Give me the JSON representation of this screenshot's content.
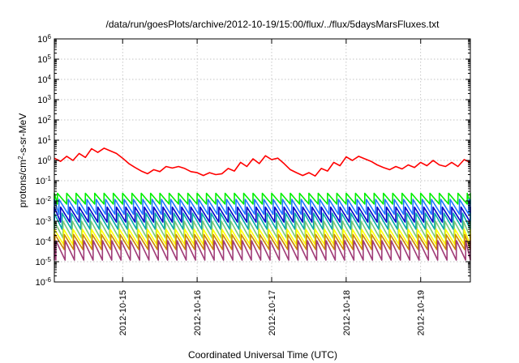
{
  "chart_data": {
    "type": "line",
    "title": "/data/run/goesPlots/archive/2012-10-19/15:00/flux/../flux/5daysMarsFluxes.txt",
    "xlabel": "Coordinated Universal Time (UTC)",
    "ylabel": "protons/cm2-s-sr-MeV",
    "ylabel_parts": {
      "before": "protons/cm",
      "sup": "2",
      "after": "-s-sr-MeV"
    },
    "xlim": [
      "2012-10-14T02:00",
      "2012-10-19T16:00"
    ],
    "yscale": "log",
    "ylim": [
      1e-06,
      1000000.0
    ],
    "grid": true,
    "x_ticks": [
      "2012-10-15",
      "2012-10-16",
      "2012-10-17",
      "2012-10-18",
      "2012-10-19"
    ],
    "y_ticks": [
      {
        "base": "10",
        "exp": "-6"
      },
      {
        "base": "10",
        "exp": "-5"
      },
      {
        "base": "10",
        "exp": "-4"
      },
      {
        "base": "10",
        "exp": "-3"
      },
      {
        "base": "10",
        "exp": "-2"
      },
      {
        "base": "10",
        "exp": "-1"
      },
      {
        "base": "10",
        "exp": "0"
      },
      {
        "base": "10",
        "exp": "1"
      },
      {
        "base": "10",
        "exp": "2"
      },
      {
        "base": "10",
        "exp": "3"
      },
      {
        "base": "10",
        "exp": "4"
      },
      {
        "base": "10",
        "exp": "5"
      },
      {
        "base": "10",
        "exp": "6"
      }
    ],
    "series": [
      {
        "color": "#ff0000",
        "x": [
          "2012-10-14T02:00",
          "2012-10-14T04:00",
          "2012-10-14T06:00",
          "2012-10-14T08:00",
          "2012-10-14T10:00",
          "2012-10-14T12:00",
          "2012-10-14T14:00",
          "2012-10-14T16:00",
          "2012-10-14T18:00",
          "2012-10-14T20:00",
          "2012-10-14T22:00",
          "2012-10-15T00:00",
          "2012-10-15T02:00",
          "2012-10-15T04:00",
          "2012-10-15T06:00",
          "2012-10-15T08:00",
          "2012-10-15T10:00",
          "2012-10-15T12:00",
          "2012-10-15T14:00",
          "2012-10-15T16:00",
          "2012-10-15T18:00",
          "2012-10-15T20:00",
          "2012-10-15T22:00",
          "2012-10-16T00:00",
          "2012-10-16T02:00",
          "2012-10-16T04:00",
          "2012-10-16T06:00",
          "2012-10-16T08:00",
          "2012-10-16T10:00",
          "2012-10-16T12:00",
          "2012-10-16T14:00",
          "2012-10-16T16:00",
          "2012-10-16T18:00",
          "2012-10-16T20:00",
          "2012-10-16T22:00",
          "2012-10-17T00:00",
          "2012-10-17T02:00",
          "2012-10-17T04:00",
          "2012-10-17T06:00",
          "2012-10-17T08:00",
          "2012-10-17T10:00",
          "2012-10-17T12:00",
          "2012-10-17T14:00",
          "2012-10-17T16:00",
          "2012-10-17T18:00",
          "2012-10-17T20:00",
          "2012-10-17T22:00",
          "2012-10-18T00:00",
          "2012-10-18T02:00",
          "2012-10-18T04:00",
          "2012-10-18T06:00",
          "2012-10-18T08:00",
          "2012-10-18T10:00",
          "2012-10-18T12:00",
          "2012-10-18T14:00",
          "2012-10-18T16:00",
          "2012-10-18T18:00",
          "2012-10-18T20:00",
          "2012-10-18T22:00",
          "2012-10-19T00:00",
          "2012-10-19T02:00",
          "2012-10-19T04:00",
          "2012-10-19T06:00",
          "2012-10-19T08:00",
          "2012-10-19T10:00",
          "2012-10-19T12:00",
          "2012-10-19T14:00",
          "2012-10-19T16:00"
        ],
        "values": [
          1.3,
          0.9,
          1.6,
          1.0,
          2.2,
          1.4,
          3.8,
          2.5,
          4.0,
          3.0,
          2.2,
          1.3,
          0.7,
          0.45,
          0.3,
          0.22,
          0.35,
          0.28,
          0.5,
          0.42,
          0.5,
          0.4,
          0.28,
          0.25,
          0.18,
          0.25,
          0.2,
          0.22,
          0.4,
          0.3,
          0.8,
          0.5,
          1.2,
          0.7,
          1.7,
          1.1,
          1.3,
          0.7,
          0.35,
          0.25,
          0.18,
          0.25,
          0.17,
          0.4,
          0.3,
          0.8,
          0.55,
          1.5,
          1.0,
          1.6,
          1.2,
          0.9,
          0.6,
          0.45,
          0.35,
          0.5,
          0.38,
          0.6,
          0.45,
          0.8,
          0.55,
          1.0,
          0.6,
          0.5,
          0.8,
          0.5,
          1.1,
          0.8
        ]
      },
      {
        "color": "#00ee00",
        "low": 0.007,
        "high": 0.024,
        "offset_h": 0.0
      },
      {
        "color": "#1e78ff",
        "low": 0.0022,
        "high": 0.012,
        "offset_h": 0.5
      },
      {
        "color": "#0000c8",
        "low": 0.0009,
        "high": 0.005,
        "offset_h": 1.0
      },
      {
        "color": "#00aaaa",
        "low": 0.0004,
        "high": 0.0025,
        "offset_h": 1.5
      },
      {
        "color": "#78c878",
        "low": 0.00015,
        "high": 0.001,
        "offset_h": 1.8
      },
      {
        "color": "#ffff00",
        "low": 7e-05,
        "high": 0.0004,
        "offset_h": 2.0
      },
      {
        "color": "#cc8800",
        "low": 4e-05,
        "high": 0.00022,
        "offset_h": 2.2
      },
      {
        "color": "#a03c78",
        "low": 1.2e-05,
        "high": 0.00011,
        "offset_h": 2.5
      }
    ],
    "sawtooth_period_h": 3
  }
}
